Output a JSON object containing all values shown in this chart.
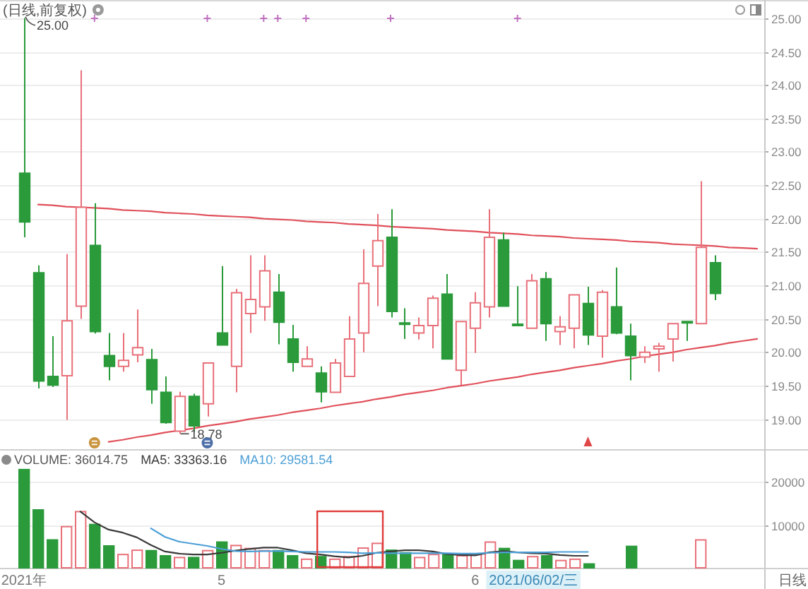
{
  "chart_data": [
    {
      "type": "candlestick",
      "title": "(日线,前复权)",
      "categories": [
        null,
        null,
        null,
        null,
        null,
        null,
        null,
        null,
        null,
        null,
        null,
        null,
        null,
        null,
        null,
        null,
        null,
        null,
        null,
        null,
        null,
        null,
        null,
        null,
        null,
        null,
        null,
        null,
        null,
        null,
        null,
        null,
        null,
        null,
        null,
        null,
        null,
        null,
        null,
        null,
        null,
        null,
        null,
        null,
        null,
        null,
        null,
        null,
        null,
        null,
        null,
        null,
        null
      ],
      "ohlc": [
        [
          22.68,
          25.0,
          21.72,
          21.95
        ],
        [
          21.19,
          21.3,
          19.46,
          19.57
        ],
        [
          19.64,
          20.24,
          19.48,
          19.51
        ],
        [
          19.65,
          21.47,
          18.99,
          20.47
        ],
        [
          20.69,
          24.22,
          20.5,
          22.17
        ],
        [
          21.6,
          22.23,
          20.28,
          20.31
        ],
        [
          19.95,
          20.29,
          19.58,
          19.79
        ],
        [
          19.79,
          20.29,
          19.71,
          19.88
        ],
        [
          19.96,
          20.64,
          19.85,
          20.07
        ],
        [
          19.89,
          20.05,
          19.23,
          19.44
        ],
        [
          19.4,
          19.64,
          18.93,
          18.95
        ],
        [
          18.82,
          19.41,
          18.78,
          19.34
        ],
        [
          19.34,
          19.38,
          18.81,
          18.9
        ],
        [
          19.23,
          19.84,
          19.04,
          19.84
        ],
        [
          20.29,
          21.29,
          20.11,
          20.11
        ],
        [
          19.79,
          20.95,
          19.4,
          20.89
        ],
        [
          20.58,
          21.45,
          20.29,
          20.79
        ],
        [
          20.68,
          21.45,
          20.47,
          21.22
        ],
        [
          20.9,
          21.17,
          20.12,
          20.45
        ],
        [
          20.2,
          20.41,
          19.71,
          19.85
        ],
        [
          19.79,
          20.09,
          19.79,
          19.9
        ],
        [
          19.69,
          19.79,
          19.25,
          19.41
        ],
        [
          19.4,
          19.9,
          19.4,
          19.84
        ],
        [
          19.64,
          20.54,
          19.64,
          20.2
        ],
        [
          20.29,
          21.54,
          20.0,
          21.03
        ],
        [
          21.29,
          22.07,
          20.69,
          21.67
        ],
        [
          21.72,
          22.14,
          20.52,
          20.61
        ],
        [
          20.44,
          20.66,
          20.2,
          20.42
        ],
        [
          20.29,
          20.52,
          20.19,
          20.4
        ],
        [
          20.4,
          20.85,
          20.06,
          20.81
        ],
        [
          20.87,
          21.17,
          19.9,
          19.9
        ],
        [
          19.73,
          20.46,
          19.51,
          20.46
        ],
        [
          20.36,
          20.9,
          19.99,
          20.74
        ],
        [
          20.68,
          22.14,
          20.52,
          21.72
        ],
        [
          21.68,
          21.79,
          20.69,
          20.69
        ],
        [
          20.42,
          20.99,
          20.41,
          20.41
        ],
        [
          20.36,
          21.17,
          20.36,
          21.07
        ],
        [
          21.1,
          21.2,
          20.17,
          20.43
        ],
        [
          20.31,
          20.54,
          20.11,
          20.38
        ],
        [
          20.36,
          20.86,
          20.06,
          20.86
        ],
        [
          20.73,
          20.98,
          20.11,
          20.26
        ],
        [
          20.24,
          20.93,
          19.92,
          20.9
        ],
        [
          20.68,
          21.27,
          20.27,
          20.29
        ],
        [
          20.24,
          20.43,
          19.58,
          19.95
        ],
        [
          19.93,
          20.09,
          19.84,
          20.0
        ],
        [
          20.05,
          20.14,
          19.71,
          20.09
        ],
        [
          20.2,
          20.43,
          19.86,
          20.43
        ],
        [
          20.46,
          20.47,
          20.17,
          20.45
        ],
        [
          20.43,
          22.56,
          20.43,
          21.57
        ],
        [
          21.34,
          21.45,
          20.78,
          20.88
        ],
        null,
        null,
        null
      ],
      "colors": [
        "#2a9a3a",
        "#2a9a3a",
        "#2a9a3a",
        "#e8707a",
        "#e8707a",
        "#2a9a3a",
        "#2a9a3a",
        "#e8707a",
        "#e8707a",
        "#2a9a3a",
        "#2a9a3a",
        "#e8707a",
        "#2a9a3a",
        "#e8707a",
        "#2a9a3a",
        "#e8707a",
        "#e8707a",
        "#e8707a",
        "#2a9a3a",
        "#2a9a3a",
        "#e8707a",
        "#2a9a3a",
        "#e8707a",
        "#e8707a",
        "#e8707a",
        "#e8707a",
        "#2a9a3a",
        "#2a9a3a",
        "#e8707a",
        "#e8707a",
        "#2a9a3a",
        "#e8707a",
        "#e8707a",
        "#e8707a",
        "#2a9a3a",
        "#2a9a3a",
        "#e8707a",
        "#2a9a3a",
        "#e8707a",
        "#e8707a",
        "#2a9a3a",
        "#e8707a",
        "#2a9a3a",
        "#2a9a3a",
        "#e8707a",
        "#e8707a",
        "#e8707a",
        "#2a9a3a",
        "#e8707a",
        "#2a9a3a",
        null,
        null,
        null
      ],
      "series": [
        {
          "type": "line",
          "color": "#e0505a",
          "values": [
            null,
            22.21,
            22.2,
            22.18,
            22.17,
            22.16,
            22.15,
            22.13,
            22.12,
            22.11,
            22.09,
            22.08,
            22.07,
            22.05,
            22.04,
            22.03,
            22.02,
            22.0,
            21.99,
            21.98,
            21.96,
            21.95,
            21.94,
            21.92,
            21.91,
            21.9,
            21.88,
            21.87,
            21.86,
            21.85,
            21.83,
            21.82,
            21.81,
            21.79,
            21.78,
            21.77,
            21.75,
            21.74,
            21.73,
            21.71,
            21.7,
            21.69,
            21.68,
            21.66,
            21.65,
            21.64,
            21.62,
            21.61,
            21.6,
            21.59,
            21.57,
            21.56,
            21.55
          ]
        },
        {
          "type": "line",
          "color": "#e0505a",
          "values": [
            null,
            null,
            null,
            null,
            null,
            null,
            18.66,
            18.69,
            18.73,
            18.76,
            18.8,
            18.83,
            18.86,
            18.9,
            18.93,
            18.96,
            19.0,
            19.03,
            19.06,
            19.1,
            19.13,
            19.16,
            19.2,
            19.23,
            19.26,
            19.3,
            19.33,
            19.37,
            19.4,
            19.43,
            19.47,
            19.5,
            19.53,
            19.57,
            19.6,
            19.63,
            19.67,
            19.7,
            19.73,
            19.77,
            19.8,
            19.83,
            19.87,
            19.9,
            19.94,
            19.97,
            20.0,
            20.04,
            20.07,
            20.1,
            20.14,
            20.17,
            20.2
          ]
        }
      ],
      "ylim": [
        18.55,
        25.23
      ],
      "yticks": [
        {
          "value": 19,
          "label": "19.00"
        },
        {
          "value": 19.5,
          "label": "19.50"
        },
        {
          "value": 20,
          "label": "20.00"
        },
        {
          "value": 20.5,
          "label": "20.50"
        },
        {
          "value": 21,
          "label": "21.00"
        },
        {
          "value": 21.5,
          "label": "21.50"
        },
        {
          "value": 22,
          "label": "22.00"
        },
        {
          "value": 22.5,
          "label": "22.50"
        },
        {
          "value": 23,
          "label": "23.00"
        },
        {
          "value": 23.5,
          "label": "23.50"
        },
        {
          "value": 24,
          "label": "24.00"
        },
        {
          "value": 24.5,
          "label": "24.50"
        },
        {
          "value": 25,
          "label": "25.00"
        }
      ],
      "grid": "y",
      "annotations": [
        "25.00",
        "18.78"
      ]
    },
    {
      "type": "bar",
      "title": "VOLUME: 36014.75",
      "categories": [
        "2021年",
        null,
        null,
        null,
        null,
        null,
        null,
        null,
        null,
        null,
        null,
        null,
        null,
        null,
        "5",
        null,
        null,
        null,
        null,
        null,
        null,
        null,
        null,
        null,
        null,
        null,
        null,
        null,
        null,
        null,
        null,
        null,
        "6",
        null,
        null,
        null,
        null,
        null,
        null,
        null,
        null,
        null,
        null,
        null,
        null,
        null,
        null,
        null,
        null,
        null,
        null,
        null,
        null
      ],
      "series": [
        {
          "colors": [
            "#2a9a3a",
            "#2a9a3a",
            "#2a9a3a",
            "#e8707a",
            "#e8707a",
            "#2a9a3a",
            "#2a9a3a",
            "#e8707a",
            "#e8707a",
            "#2a9a3a",
            "#2a9a3a",
            "#e8707a",
            "#2a9a3a",
            "#e8707a",
            "#2a9a3a",
            "#e8707a",
            "#e8707a",
            "#e8707a",
            "#2a9a3a",
            "#2a9a3a",
            "#e8707a",
            "#2a9a3a",
            "#e8707a",
            "#e8707a",
            "#e8707a",
            "#e8707a",
            "#2a9a3a",
            "#2a9a3a",
            "#e8707a",
            "#e8707a",
            "#2a9a3a",
            "#e8707a",
            "#e8707a",
            "#e8707a",
            "#2a9a3a",
            "#2a9a3a",
            "#e8707a",
            "#2a9a3a",
            "#e8707a",
            "#e8707a",
            "#2a9a3a",
            null,
            null,
            "#2a9a3a",
            null,
            null,
            null,
            null,
            "#e8707a",
            null,
            null,
            null,
            null
          ],
          "values": [
            22900,
            13500,
            6500,
            9600,
            13100,
            10100,
            5100,
            3100,
            4100,
            4000,
            2800,
            2400,
            2400,
            4000,
            6000,
            5200,
            4500,
            4000,
            4000,
            2800,
            2000,
            2600,
            2000,
            2600,
            4600,
            5700,
            4100,
            3500,
            2400,
            3100,
            3100,
            2800,
            3100,
            6000,
            4500,
            1700,
            2600,
            2800,
            1700,
            2000,
            900,
            null,
            null,
            5000,
            null,
            null,
            null,
            null,
            6500,
            null,
            null,
            null,
            null
          ]
        },
        {
          "type": "line",
          "name": "MA5: 33363.16",
          "color": "#3a3a3a",
          "values": [
            null,
            null,
            null,
            null,
            13100,
            10600,
            8900,
            8200,
            7100,
            5300,
            3800,
            3300,
            3100,
            3100,
            3500,
            4000,
            4400,
            4700,
            4700,
            4100,
            3400,
            3100,
            2700,
            2400,
            2800,
            3500,
            3800,
            4100,
            4100,
            3800,
            3200,
            3000,
            2900,
            3600,
            3900,
            3600,
            3400,
            3300,
            3000,
            2800,
            2800,
            null,
            null,
            null,
            null,
            null,
            null,
            null,
            null,
            null,
            null,
            null,
            null
          ]
        },
        {
          "type": "line",
          "name": "MA10: 29581.54",
          "color": "#4c9fd6",
          "values": [
            null,
            null,
            null,
            null,
            null,
            null,
            null,
            null,
            null,
            9200,
            7200,
            6100,
            5600,
            5100,
            4400,
            3900,
            3800,
            3900,
            3900,
            3800,
            3700,
            3700,
            3700,
            3600,
            3400,
            3500,
            3400,
            3400,
            3400,
            3400,
            3400,
            3300,
            3300,
            3500,
            3600,
            3600,
            3600,
            3600,
            3700,
            3700,
            3700,
            null,
            null,
            null,
            null,
            null,
            null,
            null,
            null,
            null,
            null,
            null,
            null
          ]
        }
      ],
      "ylim": [
        0,
        27000
      ],
      "yticks": [
        10000,
        20000
      ],
      "grid": "y",
      "legend": "top left",
      "annotations": [
        "2021/06/02/三",
        "日线"
      ]
    }
  ]
}
